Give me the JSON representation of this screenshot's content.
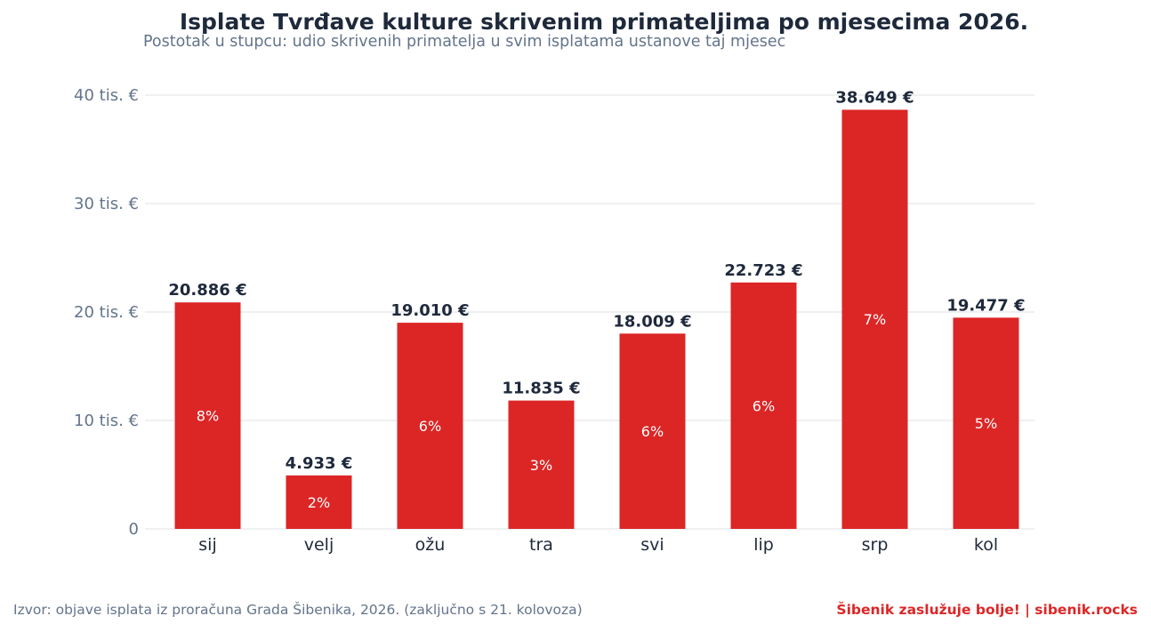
{
  "title": "Isplate Tvrđave kulture skrivenim primateljima po mjesecima 2026.",
  "subtitle": "Postotak u stupcu: udio skrivenih primatelja u svim isplatama ustanove taj mjesec",
  "footer": {
    "source": "Izvor: objave isplata iz proračuna Grada Šibenika, 2026. (zaključno s 21. kolovoza)",
    "brand": "Šibenik zaslužuje bolje!  |  sibenik.rocks"
  },
  "colors": {
    "bar": "#dc2626",
    "grid": "#e5e7eb",
    "text_dark": "#1e293b",
    "text_muted": "#64748b"
  },
  "chart_data": {
    "type": "bar",
    "categories": [
      "sij",
      "velj",
      "ožu",
      "tra",
      "svi",
      "lip",
      "srp",
      "kol"
    ],
    "values": [
      20886,
      4933,
      19010,
      11835,
      18009,
      22723,
      38649,
      19477
    ],
    "value_labels": [
      "20.886 €",
      "4.933 €",
      "19.010 €",
      "11.835 €",
      "18.009 €",
      "22.723 €",
      "38.649 €",
      "19.477 €"
    ],
    "percent_labels": [
      "8%",
      "2%",
      "6%",
      "3%",
      "6%",
      "6%",
      "7%",
      "5%"
    ],
    "ylim": [
      0,
      40000
    ],
    "yticks": [
      0,
      10000,
      20000,
      30000,
      40000
    ],
    "ytick_labels": [
      "0",
      "10 tis. €",
      "20 tis. €",
      "30 tis. €",
      "40 tis. €"
    ],
    "grid": true
  }
}
